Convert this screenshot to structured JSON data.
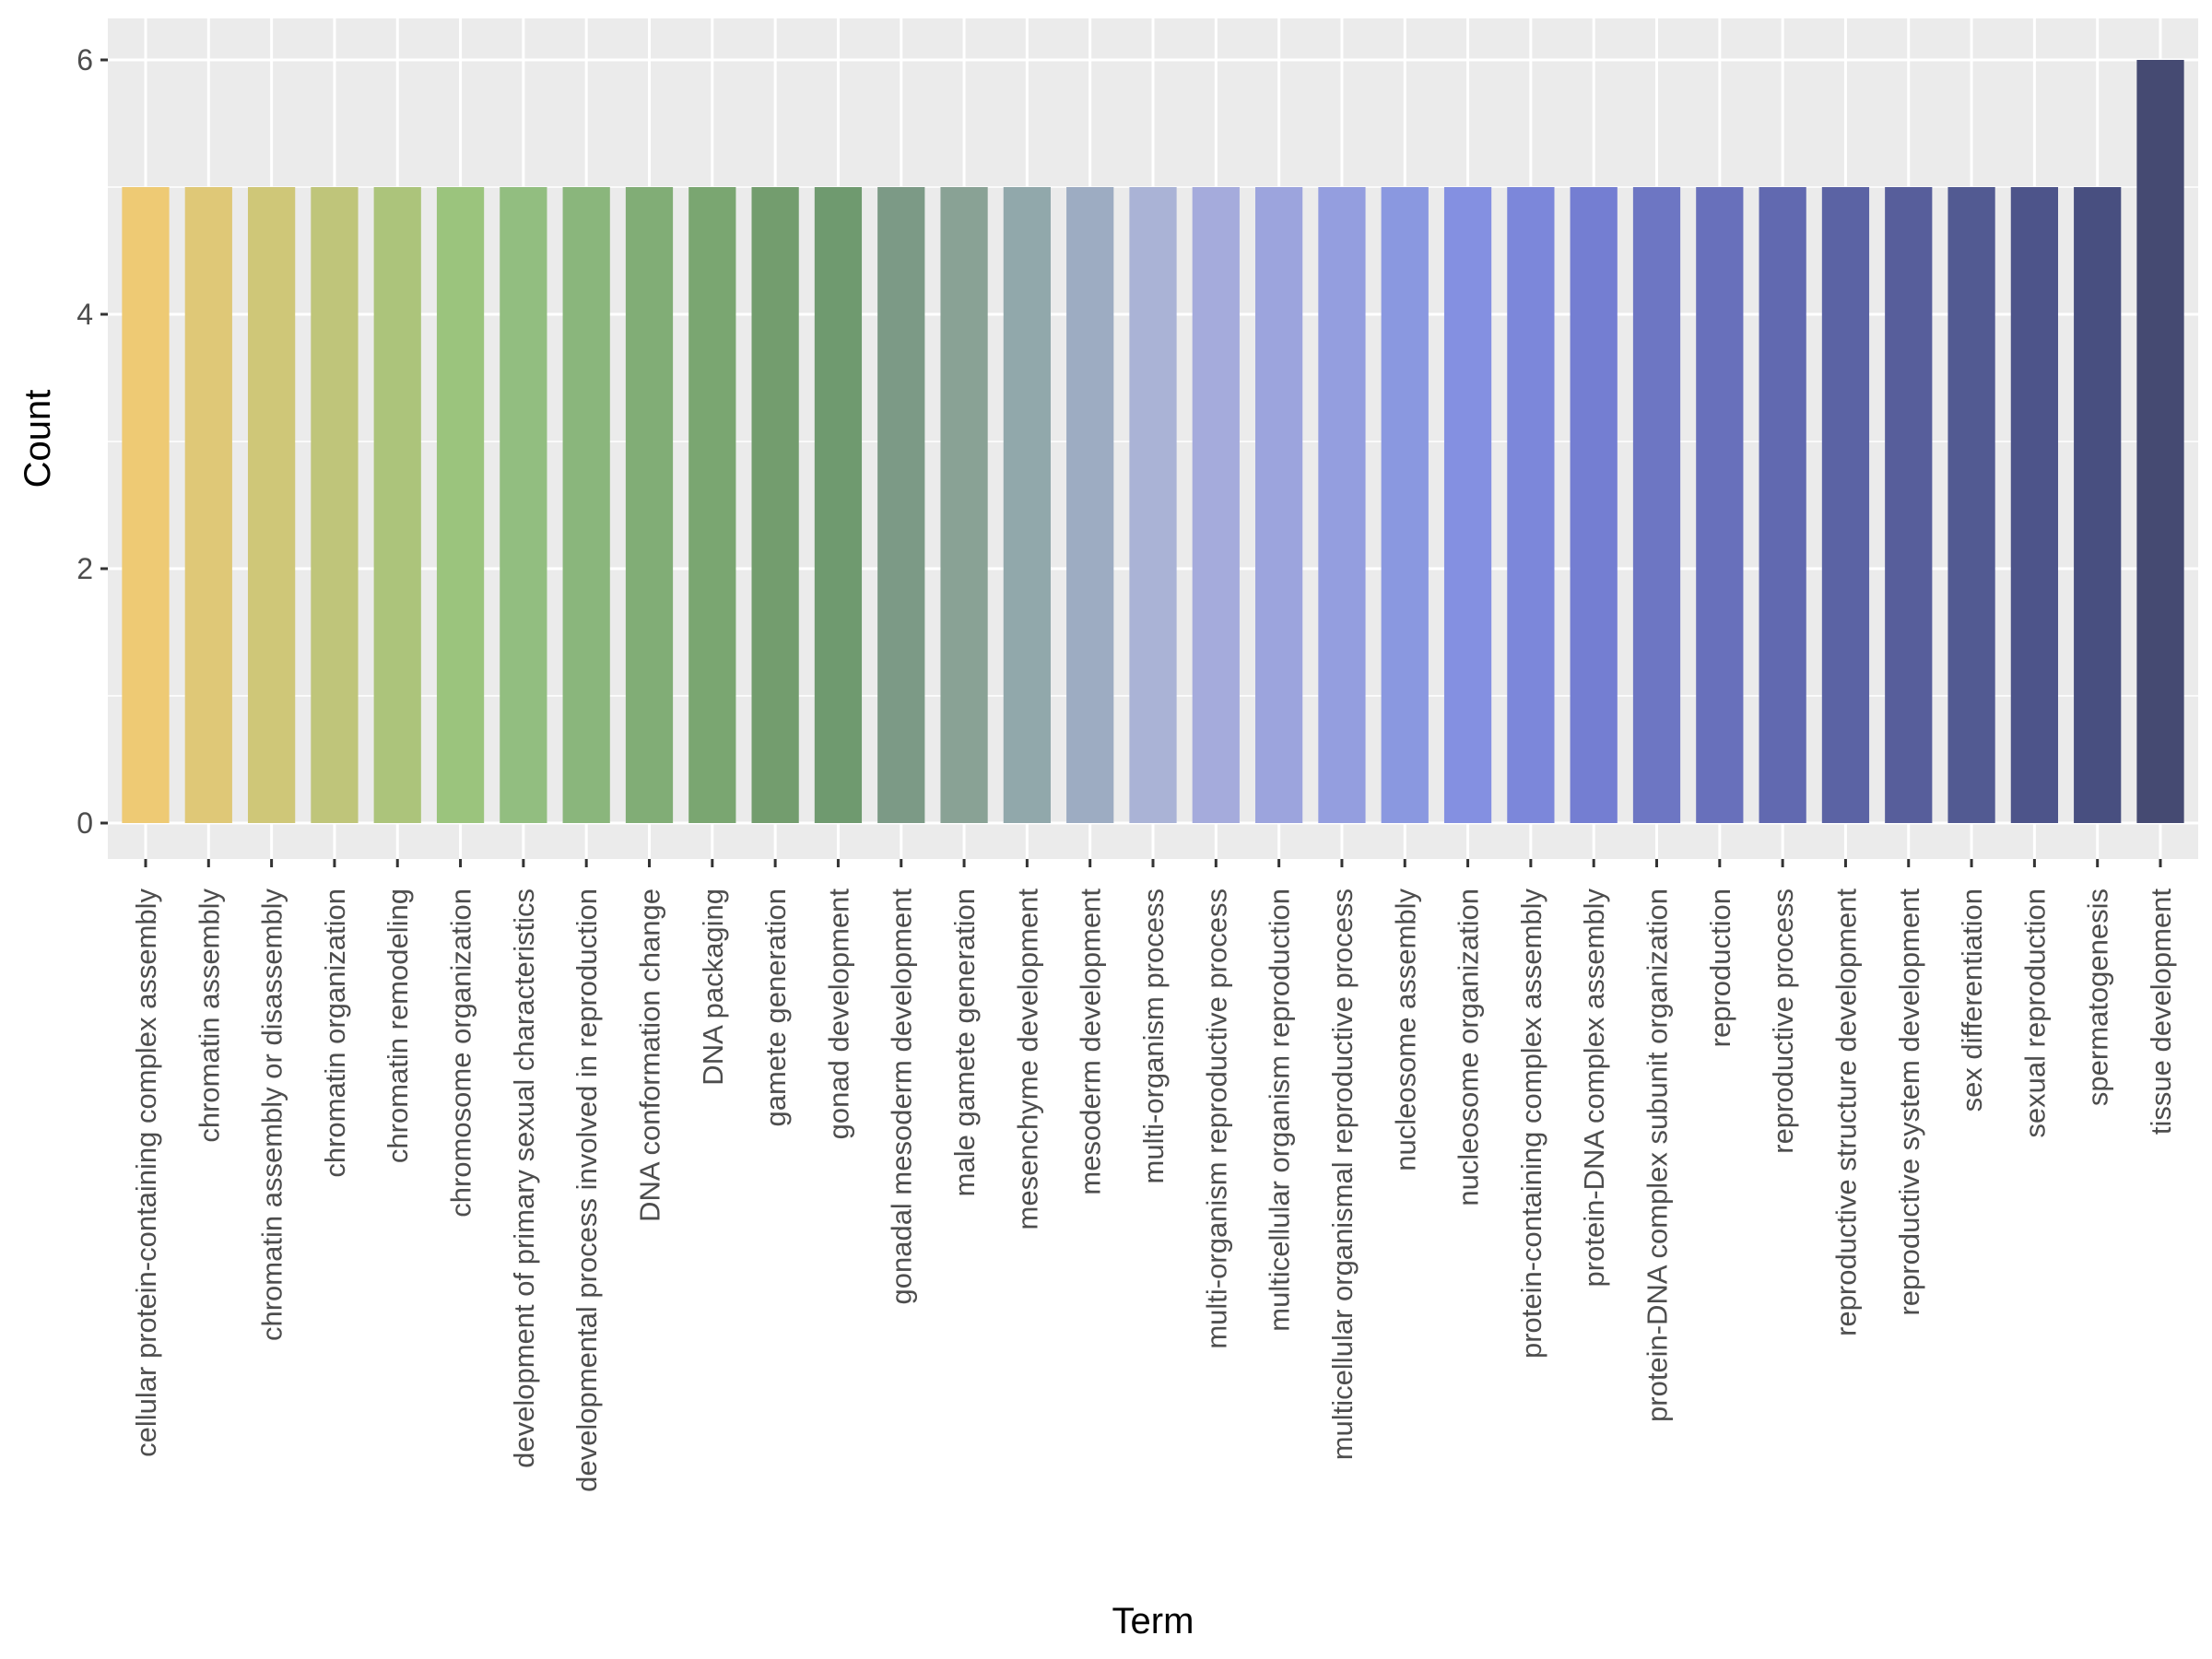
{
  "chart_data": {
    "type": "bar",
    "title": "",
    "xlabel": "Term",
    "ylabel": "Count",
    "ylim": [
      0,
      6.3
    ],
    "yticks": [
      0,
      2,
      4,
      6
    ],
    "ytick_labels": [
      "0",
      "2",
      "4",
      "6"
    ],
    "grid": true,
    "legend": "none",
    "categories": [
      "cellular protein-containing complex assembly",
      "chromatin assembly",
      "chromatin assembly or disassembly",
      "chromatin organization",
      "chromatin remodeling",
      "chromosome organization",
      "development of primary sexual characteristics",
      "developmental process involved in reproduction",
      "DNA conformation change",
      "DNA packaging",
      "gamete generation",
      "gonad development",
      "gonadal mesoderm development",
      "male gamete generation",
      "mesenchyme development",
      "mesoderm development",
      "multi-organism process",
      "multi-organism reproductive process",
      "multicellular organism reproduction",
      "multicellular organismal reproductive process",
      "nucleosome assembly",
      "nucleosome organization",
      "protein-containing complex assembly",
      "protein-DNA complex assembly",
      "protein-DNA complex subunit organization",
      "reproduction",
      "reproductive process",
      "reproductive structure development",
      "reproductive system development",
      "sex differentiation",
      "sexual reproduction",
      "spermatogenesis",
      "tissue development"
    ],
    "values": [
      5,
      5,
      5,
      5,
      5,
      5,
      5,
      5,
      5,
      5,
      5,
      5,
      5,
      5,
      5,
      5,
      5,
      5,
      5,
      5,
      5,
      5,
      5,
      5,
      5,
      5,
      5,
      5,
      5,
      5,
      5,
      5,
      6
    ],
    "colors": [
      "#EECA74",
      "#DFC877",
      "#CFC778",
      "#BFC57A",
      "#ACC47B",
      "#9BC47D",
      "#92BE80",
      "#8AB67C",
      "#81AD76",
      "#7AA671",
      "#739D6E",
      "#6F9A6F",
      "#7C9A86",
      "#89A295",
      "#91A8AB",
      "#9DACC2",
      "#AAB3D6",
      "#A5ABDC",
      "#9CA4DD",
      "#949EDF",
      "#8A98E0",
      "#8490E1",
      "#7C87DA",
      "#747ED2",
      "#6D76C3",
      "#6870BB",
      "#6169B0",
      "#5B63A4",
      "#575E9B",
      "#525A92",
      "#4D548A",
      "#484F80",
      "#454A72"
    ]
  }
}
